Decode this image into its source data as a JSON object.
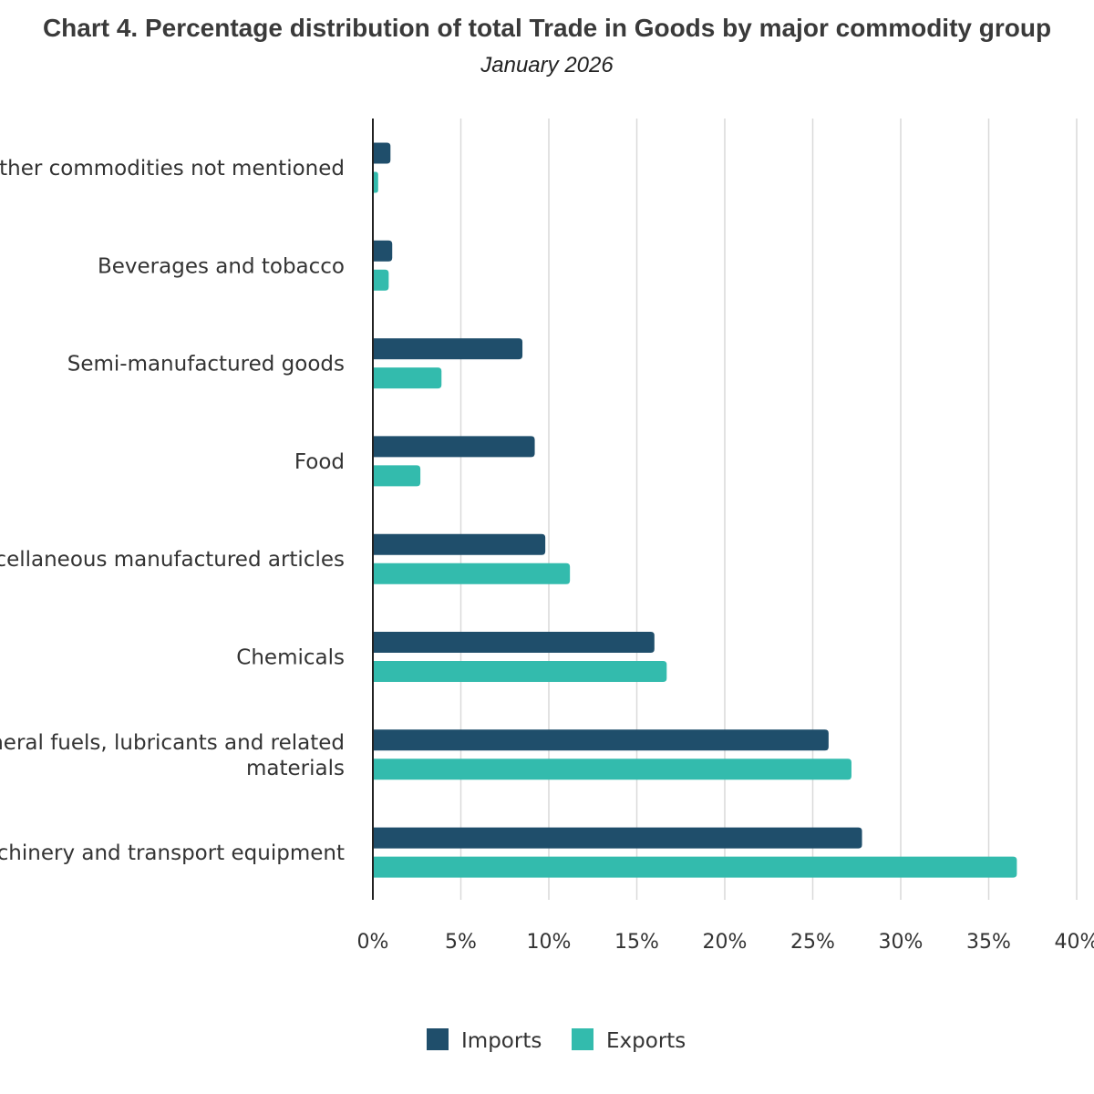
{
  "chart_data": {
    "type": "bar",
    "orientation": "horizontal",
    "title": "Chart 4. Percentage distribution of total Trade in Goods by major commodity group",
    "subtitle": "January 2026",
    "categories": [
      "Other commodities not mentioned",
      "Beverages and tobacco",
      "Semi-manufactured goods",
      "Food",
      "Miscellaneous manufactured articles",
      "Chemicals",
      "Mineral fuels, lubricants and related materials",
      "Machinery and transport equipment"
    ],
    "category_display_lines": [
      [
        "Other commodities not mentioned"
      ],
      [
        "Beverages and tobacco"
      ],
      [
        "Semi-manufactured goods"
      ],
      [
        "Food"
      ],
      [
        "Miscellaneous manufactured articles"
      ],
      [
        "Chemicals"
      ],
      [
        "Mineral fuels, lubricants and related",
        "materials"
      ],
      [
        "Machinery and transport equipment"
      ]
    ],
    "series": [
      {
        "name": "Imports",
        "color": "#1f4e6b",
        "values": [
          1.0,
          1.1,
          8.5,
          9.2,
          9.8,
          16.0,
          25.9,
          27.8
        ]
      },
      {
        "name": "Exports",
        "color": "#33bbad",
        "values": [
          0.3,
          0.9,
          3.9,
          2.7,
          11.2,
          16.7,
          27.2,
          36.6
        ]
      }
    ],
    "xlim": [
      0,
      40
    ],
    "xticks": [
      0,
      5,
      10,
      15,
      20,
      25,
      30,
      35,
      40
    ],
    "xtick_labels": [
      "0%",
      "5%",
      "10%",
      "15%",
      "20%",
      "25%",
      "30%",
      "35%",
      "40%"
    ],
    "xlabel": "",
    "ylabel": "",
    "grid": true,
    "legend_position": "bottom-center"
  }
}
